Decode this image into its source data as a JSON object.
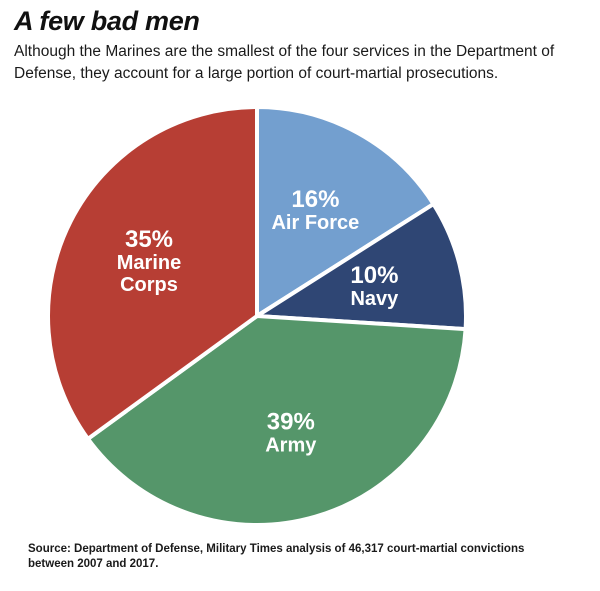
{
  "chart_data": {
    "type": "pie",
    "title": "A few bad men",
    "subtitle": "Although the Marines are the smallest of the four services in the Department of Defense, they account for a large portion of court-martial prosecutions.",
    "source": "Source: Department of Defense, Military Times analysis of 46,317 court-martial convictions between 2007 and 2017.",
    "slices": [
      {
        "pct_label": "16%",
        "label_lines": [
          "Air Force"
        ],
        "value": 16,
        "color": "#739fcf"
      },
      {
        "pct_label": "10%",
        "label_lines": [
          "Navy"
        ],
        "value": 10,
        "color": "#2f4674"
      },
      {
        "pct_label": "39%",
        "label_lines": [
          "Army"
        ],
        "value": 39,
        "color": "#55966a"
      },
      {
        "pct_label": "35%",
        "label_lines": [
          "Marine",
          "Corps"
        ],
        "value": 35,
        "color": "#b73e34"
      }
    ]
  }
}
